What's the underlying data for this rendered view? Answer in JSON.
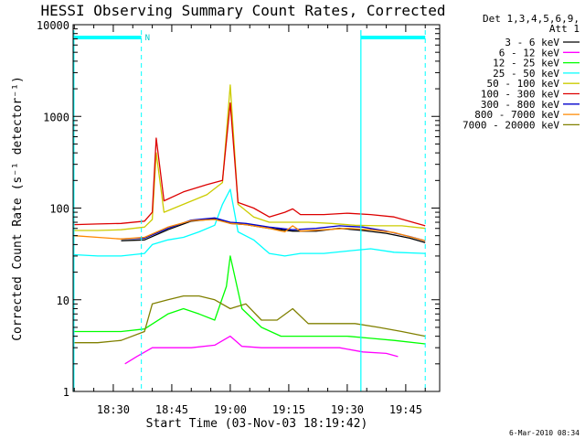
{
  "chart_data": {
    "type": "line",
    "title": "HESSI Observing Summary Count Rates, Corrected",
    "xlabel": "Start Time (03-Nov-03 18:19:42)",
    "ylabel": "Corrected Count Rate (s⁻¹ detector⁻¹)",
    "y_scale": "log",
    "ylim": [
      1,
      10000
    ],
    "x_unit": "minutes of day (UT, 03-Nov-03)",
    "xlim": [
      1099.7,
      1193.7
    ],
    "x_ticks": [
      1110,
      1125,
      1140,
      1155,
      1170,
      1185
    ],
    "x_tick_labels": [
      "18:30",
      "18:45",
      "19:00",
      "19:15",
      "19:30",
      "19:45"
    ],
    "y_ticks": [
      1,
      10,
      100,
      1000,
      10000
    ],
    "y_tick_labels": [
      "1",
      "10",
      "100",
      "1000",
      "10000"
    ],
    "grid": false,
    "legend_position": "right-outside",
    "legend_header": [
      "Det 1,3,4,5,6,9,",
      "Att 1"
    ],
    "footer": "6-Mar-2010 08:34",
    "night_marker_label": "N",
    "night_bars": [
      {
        "start": 1099.7,
        "end": 1117.2
      },
      {
        "start": 1173.5,
        "end": 1190.0
      }
    ],
    "night_dashed_lines": [
      1117.2,
      1190.0
    ],
    "saa_solid_lines": [
      1099.9,
      1173.5
    ],
    "series": [
      {
        "name": "3 - 6 keV",
        "color": "#000000",
        "x": [
          1112,
          1118,
          1124,
          1130,
          1136,
          1140,
          1144,
          1150,
          1156,
          1162,
          1168,
          1174,
          1180,
          1186,
          1190
        ],
        "y": [
          44,
          45,
          58,
          72,
          76,
          68,
          66,
          60,
          56,
          56,
          60,
          57,
          53,
          47,
          42
        ]
      },
      {
        "name": "6 - 12 keV",
        "color": "#ff00ff",
        "x": [
          1113,
          1116,
          1120,
          1124,
          1130,
          1136,
          1140,
          1143,
          1148,
          1155,
          1162,
          1168,
          1174,
          1180,
          1183
        ],
        "y": [
          2,
          2.4,
          3,
          3,
          3,
          3.2,
          4,
          3.1,
          3,
          3,
          3,
          3,
          2.7,
          2.6,
          2.4
        ]
      },
      {
        "name": "12 - 25 keV",
        "color": "#00ff00",
        "x": [
          1100,
          1106,
          1112,
          1118,
          1124,
          1128,
          1132,
          1136,
          1139,
          1140,
          1143,
          1148,
          1153,
          1158,
          1164,
          1170,
          1176,
          1182,
          1190
        ],
        "y": [
          4.5,
          4.5,
          4.5,
          4.8,
          7,
          8,
          7,
          6,
          14,
          30,
          8,
          5,
          4,
          4,
          4,
          4,
          3.8,
          3.6,
          3.3
        ]
      },
      {
        "name": "25 - 50 keV",
        "color": "#00ffff",
        "x": [
          1100,
          1106,
          1112,
          1118,
          1120,
          1124,
          1128,
          1132,
          1136,
          1138,
          1140,
          1142,
          1146,
          1150,
          1154,
          1158,
          1164,
          1170,
          1176,
          1182,
          1190
        ],
        "y": [
          31,
          30,
          30,
          32,
          40,
          45,
          48,
          55,
          65,
          110,
          160,
          55,
          45,
          32,
          30,
          32,
          32,
          34,
          36,
          33,
          32
        ]
      },
      {
        "name": "50 - 100 keV",
        "color": "#cccc00",
        "x": [
          1100,
          1106,
          1112,
          1118,
          1120,
          1121,
          1123,
          1128,
          1134,
          1138,
          1140,
          1142,
          1146,
          1150,
          1156,
          1160,
          1166,
          1172,
          1178,
          1184,
          1190
        ],
        "y": [
          57,
          57,
          58,
          62,
          75,
          400,
          90,
          110,
          140,
          190,
          2200,
          110,
          80,
          70,
          70,
          70,
          68,
          65,
          64,
          64,
          60
        ]
      },
      {
        "name": "100 - 300 keV",
        "color": "#dd0000",
        "x": [
          1100,
          1106,
          1112,
          1118,
          1120,
          1121,
          1123,
          1128,
          1134,
          1138,
          1140,
          1142,
          1146,
          1150,
          1154,
          1156,
          1158,
          1164,
          1170,
          1176,
          1182,
          1190
        ],
        "y": [
          66,
          67,
          68,
          72,
          90,
          580,
          120,
          150,
          180,
          200,
          1400,
          115,
          100,
          80,
          90,
          98,
          85,
          85,
          88,
          85,
          80,
          64
        ]
      },
      {
        "name": "300 - 800 keV",
        "color": "#0000cc",
        "x": [
          1112,
          1118,
          1124,
          1130,
          1136,
          1140,
          1144,
          1150,
          1156,
          1162,
          1168,
          1174,
          1180,
          1186,
          1190
        ],
        "y": [
          46,
          47,
          60,
          74,
          78,
          70,
          68,
          62,
          58,
          60,
          64,
          62,
          56,
          49,
          44
        ]
      },
      {
        "name": "800 - 7000 keV",
        "color": "#ff8800",
        "x": [
          1100,
          1106,
          1112,
          1118,
          1124,
          1130,
          1136,
          1140,
          1144,
          1150,
          1154,
          1156,
          1158,
          1164,
          1170,
          1176,
          1182,
          1190
        ],
        "y": [
          50,
          48,
          46,
          48,
          62,
          73,
          75,
          68,
          66,
          60,
          55,
          64,
          56,
          58,
          60,
          58,
          54,
          44
        ]
      },
      {
        "name": "7000 - 20000 keV",
        "color": "#808000",
        "x": [
          1100,
          1106,
          1112,
          1118,
          1120,
          1124,
          1128,
          1132,
          1136,
          1140,
          1144,
          1148,
          1152,
          1156,
          1160,
          1166,
          1172,
          1178,
          1184,
          1190
        ],
        "y": [
          3.4,
          3.4,
          3.6,
          4.5,
          9,
          10,
          11,
          11,
          10,
          8,
          9,
          6,
          6,
          8,
          5.5,
          5.5,
          5.5,
          5,
          4.5,
          4
        ]
      }
    ]
  }
}
